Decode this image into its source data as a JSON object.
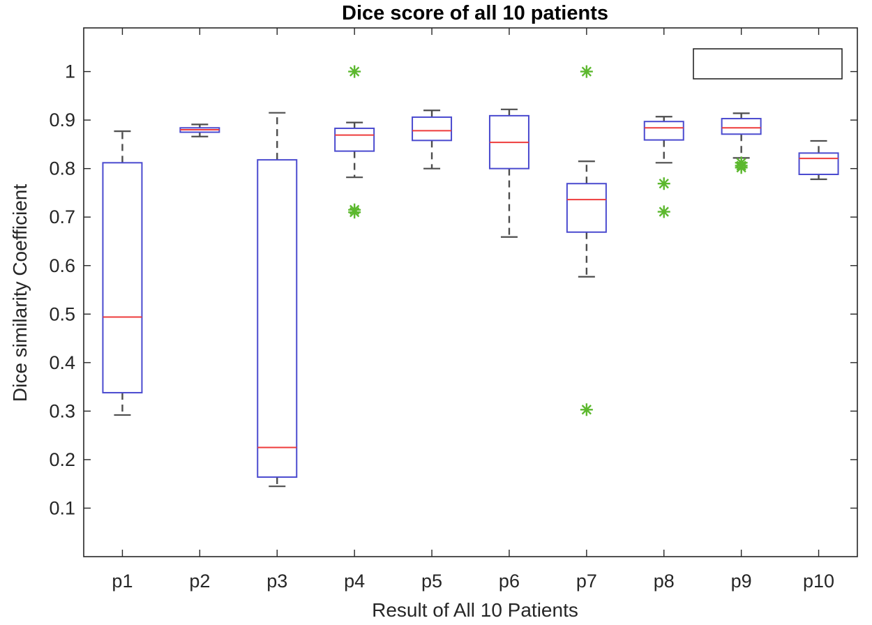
{
  "chart_data": {
    "type": "boxplot",
    "title": "Dice score of all 10 patients",
    "xlabel": "Result of All 10 Patients",
    "ylabel": "Dice similarity Coefficient",
    "ylim": [
      0,
      1.09
    ],
    "yticks": [
      0.1,
      0.2,
      0.3,
      0.4,
      0.5,
      0.6,
      0.7,
      0.8,
      0.9,
      1
    ],
    "ytick_labels": [
      "0.1",
      "0.2",
      "0.3",
      "0.4",
      "0.5",
      "0.6",
      "0.7",
      "0.8",
      "0.9",
      "1"
    ],
    "categories": [
      "p1",
      "p2",
      "p3",
      "p4",
      "p5",
      "p6",
      "p7",
      "p8",
      "p9",
      "p10"
    ],
    "boxes": [
      {
        "name": "p1",
        "whisker_low": 0.292,
        "q1": 0.338,
        "median": 0.494,
        "q3": 0.812,
        "whisker_high": 0.877,
        "outliers": []
      },
      {
        "name": "p2",
        "whisker_low": 0.866,
        "q1": 0.875,
        "median": 0.88,
        "q3": 0.884,
        "whisker_high": 0.891,
        "outliers": []
      },
      {
        "name": "p3",
        "whisker_low": 0.145,
        "q1": 0.164,
        "median": 0.225,
        "q3": 0.818,
        "whisker_high": 0.915,
        "outliers": []
      },
      {
        "name": "p4",
        "whisker_low": 0.782,
        "q1": 0.836,
        "median": 0.869,
        "q3": 0.883,
        "whisker_high": 0.895,
        "outliers": [
          1.0,
          0.715,
          0.71
        ]
      },
      {
        "name": "p5",
        "whisker_low": 0.8,
        "q1": 0.858,
        "median": 0.878,
        "q3": 0.906,
        "whisker_high": 0.92,
        "outliers": []
      },
      {
        "name": "p6",
        "whisker_low": 0.659,
        "q1": 0.8,
        "median": 0.854,
        "q3": 0.909,
        "whisker_high": 0.922,
        "outliers": []
      },
      {
        "name": "p7",
        "whisker_low": 0.577,
        "q1": 0.669,
        "median": 0.736,
        "q3": 0.769,
        "whisker_high": 0.815,
        "outliers": [
          1.0,
          0.303
        ]
      },
      {
        "name": "p8",
        "whisker_low": 0.812,
        "q1": 0.859,
        "median": 0.884,
        "q3": 0.897,
        "whisker_high": 0.907,
        "outliers": [
          0.769,
          0.711
        ]
      },
      {
        "name": "p9",
        "whisker_low": 0.822,
        "q1": 0.871,
        "median": 0.884,
        "q3": 0.903,
        "whisker_high": 0.914,
        "outliers": [
          0.812,
          0.806,
          0.802
        ]
      },
      {
        "name": "p10",
        "whisker_low": 0.778,
        "q1": 0.788,
        "median": 0.821,
        "q3": 0.832,
        "whisker_high": 0.857,
        "outliers": []
      }
    ],
    "legend": {
      "position": "top-right",
      "entries": []
    },
    "colors": {
      "box": "#4a4acf",
      "median": "#ee3b3b",
      "whisker": "#4d4d4d",
      "outlier": "#5cb82e",
      "axis": "#262626",
      "legend_border": "#262626"
    }
  }
}
